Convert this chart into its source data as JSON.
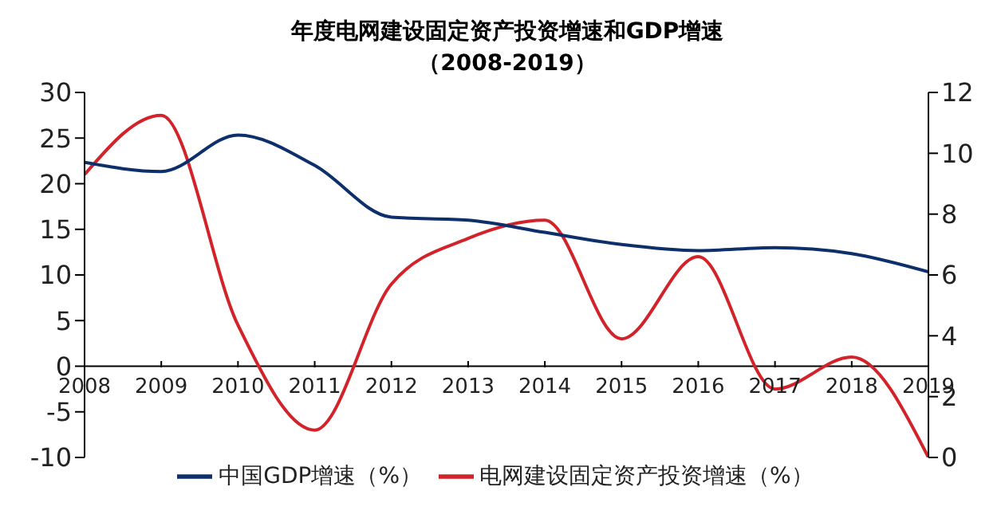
{
  "chart_data": {
    "type": "line",
    "title": "年度电网建设固定资产投资增速和GDP增速",
    "subtitle": "（2008-2019）",
    "x": [
      2008,
      2009,
      2010,
      2011,
      2012,
      2013,
      2014,
      2015,
      2016,
      2017,
      2018,
      2019
    ],
    "xlim": [
      2008,
      2019
    ],
    "xticks": [
      2008,
      2009,
      2010,
      2011,
      2012,
      2013,
      2014,
      2015,
      2016,
      2017,
      2018,
      2019
    ],
    "ylim": [
      -10,
      30
    ],
    "yticks": [
      -10,
      -5,
      0,
      5,
      10,
      15,
      20,
      25,
      30
    ],
    "y2lim": [
      0,
      12
    ],
    "y2ticks": [
      0,
      2,
      4,
      6,
      8,
      10,
      12
    ],
    "series": [
      {
        "name": "电网建设固定资产投资增速（%）",
        "color": "#d2232a",
        "values": [
          21,
          27.5,
          4.5,
          -7,
          9,
          14,
          16,
          3,
          12,
          -2.5,
          1,
          -10
        ]
      },
      {
        "name": "中国GDP增速（%）",
        "color": "#0d2f6b",
        "axis": "y2",
        "values": [
          9.7,
          9.4,
          10.6,
          9.6,
          7.9,
          7.8,
          7.4,
          7.0,
          6.8,
          6.9,
          6.7,
          6.1
        ]
      }
    ],
    "grid": false,
    "legend": "bottom",
    "marker": "none",
    "line_style": "solid"
  }
}
